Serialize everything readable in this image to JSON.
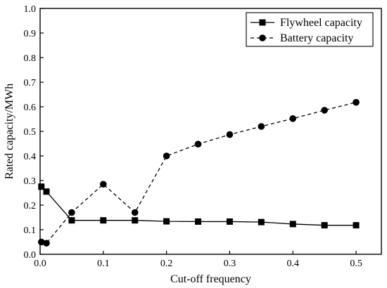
{
  "chart_data": {
    "type": "line",
    "xlabel": "Cut-off frequency",
    "ylabel": "Rated capacity/MWh",
    "xlim": [
      0,
      0.54
    ],
    "ylim": [
      0,
      1.0
    ],
    "xticks": [
      0.0,
      0.1,
      0.2,
      0.3,
      0.4,
      0.5
    ],
    "xtick_labels": [
      "0.0",
      "0.1",
      "0.2",
      "0.3",
      "0.4",
      "0.5"
    ],
    "yticks": [
      0.0,
      0.1,
      0.2,
      0.3,
      0.4,
      0.5,
      0.6,
      0.7,
      0.8,
      0.9,
      1.0
    ],
    "ytick_labels": [
      "0.0",
      "0.1",
      "0.2",
      "0.3",
      "0.4",
      "0.5",
      "0.6",
      "0.7",
      "0.8",
      "0.9",
      "1.0"
    ],
    "grid": false,
    "legend_position": "top-right",
    "series": [
      {
        "name": "Flywheel capacity",
        "line_style": "solid",
        "marker": "square",
        "color": "#000000",
        "x": [
          0.002,
          0.01,
          0.05,
          0.1,
          0.15,
          0.2,
          0.25,
          0.3,
          0.35,
          0.4,
          0.45,
          0.5
        ],
        "y": [
          0.275,
          0.255,
          0.138,
          0.138,
          0.138,
          0.134,
          0.133,
          0.133,
          0.131,
          0.123,
          0.118,
          0.118
        ]
      },
      {
        "name": "Battery capacity",
        "line_style": "dashed",
        "marker": "circle",
        "color": "#000000",
        "x": [
          0.002,
          0.01,
          0.05,
          0.1,
          0.15,
          0.2,
          0.25,
          0.3,
          0.35,
          0.4,
          0.45,
          0.5
        ],
        "y": [
          0.05,
          0.045,
          0.17,
          0.285,
          0.17,
          0.4,
          0.448,
          0.487,
          0.52,
          0.552,
          0.586,
          0.618
        ]
      }
    ]
  }
}
